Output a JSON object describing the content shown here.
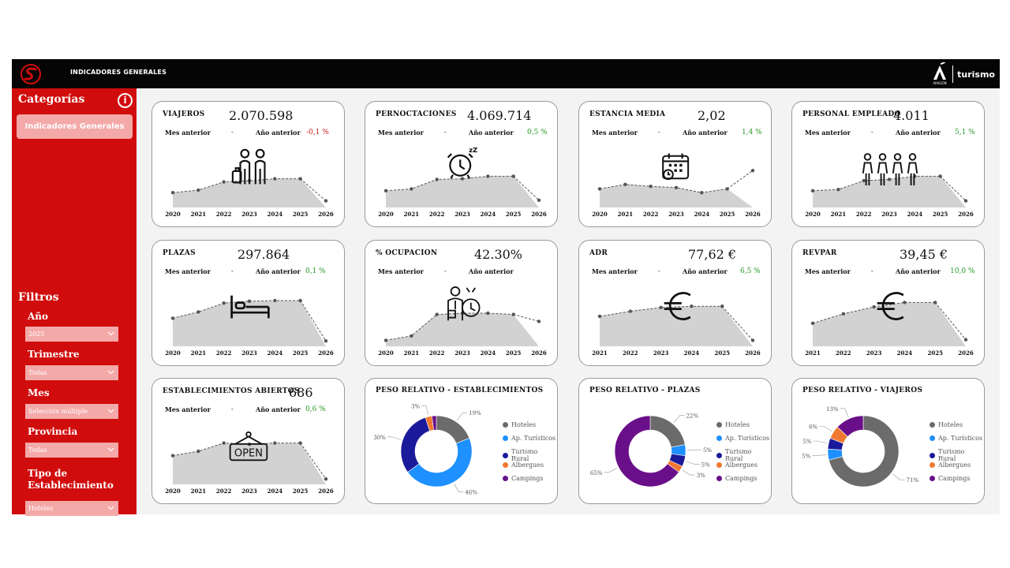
{
  "header": {
    "title": "INDICADORES GENERALES",
    "brand_word": "turismo",
    "brand_sub": "ARAGÓN"
  },
  "sidebar": {
    "categories_title": "Categorías",
    "info_icon": "i",
    "category_button": "Indicadores Generales",
    "filters_title": "Filtros",
    "filters": [
      {
        "label": "Año",
        "value": "2025"
      },
      {
        "label": "Trimestre",
        "value": "Todas"
      },
      {
        "label": "Mes",
        "value": "Selección múltiple"
      },
      {
        "label": "Provincia",
        "value": "Todas"
      },
      {
        "label": "Tipo de Establecimiento",
        "value": "Hoteles"
      }
    ]
  },
  "labels": {
    "prev_month": "Mes anterior",
    "prev_year": "Año anterior",
    "dash": "-"
  },
  "colors": {
    "positive": "#2a9a2a",
    "negative": "#cc1f1f",
    "area": "#d2d2d2",
    "brand_red": "#d10c0c"
  },
  "kpis": [
    {
      "title": "VIAJEROS",
      "value": "2.070.598",
      "year_change": "-0,1 %",
      "trend": "negative",
      "icon": "travelers-icon",
      "years": [
        "2020",
        "2021",
        "2022",
        "2023",
        "2024",
        "2025",
        "2026"
      ],
      "series": [
        0.21,
        0.25,
        0.38,
        0.4,
        0.43,
        0.43,
        0.08
      ]
    },
    {
      "title": "PERNOCTACIONES",
      "value": "4.069.714",
      "year_change": "0,5 %",
      "trend": "positive",
      "icon": "alarm-clock-icon",
      "years": [
        "2020",
        "2021",
        "2022",
        "2023",
        "2024",
        "2025",
        "2026"
      ],
      "series": [
        0.24,
        0.27,
        0.42,
        0.43,
        0.47,
        0.47,
        0.09
      ]
    },
    {
      "title": "ESTANCIA MEDIA",
      "value": "2,02",
      "year_change": "1,4 %",
      "trend": "positive",
      "icon": "calendar-icon",
      "years": [
        "2020",
        "2021",
        "2022",
        "2023",
        "2024",
        "2025",
        "2026"
      ],
      "series": [
        0.27,
        0.34,
        0.31,
        0.29,
        0.21,
        0.27,
        0.56
      ]
    },
    {
      "title": "PERSONAL EMPLEADO",
      "value": "4.011",
      "year_change": "5,1 %",
      "trend": "positive",
      "icon": "staff-icon",
      "years": [
        "2020",
        "2021",
        "2022",
        "2023",
        "2024",
        "2025",
        "2026"
      ],
      "series": [
        0.24,
        0.26,
        0.4,
        0.42,
        0.47,
        0.47,
        0.08
      ]
    },
    {
      "title": "PLAZAS",
      "value": "297.864",
      "year_change": "0,1 %",
      "trend": "positive",
      "icon": "bed-icon",
      "years": [
        "2020",
        "2021",
        "2022",
        "2023",
        "2024",
        "2025",
        "2026"
      ],
      "series": [
        0.42,
        0.52,
        0.66,
        0.69,
        0.7,
        0.7,
        0.06
      ]
    },
    {
      "title": "% OCUPACION",
      "value": "42.30%",
      "year_change": "",
      "trend": "positive",
      "icon": "businessman-clock-icon",
      "years": [
        "2020",
        "2021",
        "2022",
        "2023",
        "2024",
        "2025",
        "2026"
      ],
      "series": [
        0.07,
        0.14,
        0.48,
        0.5,
        0.5,
        0.48,
        0.37
      ]
    },
    {
      "title": "ADR",
      "value": "77,62 €",
      "year_change": "6,5 %",
      "trend": "positive",
      "icon": "euro-icon",
      "years": [
        "2021",
        "2022",
        "2023",
        "2024",
        "2025",
        "2026"
      ],
      "series": [
        0.45,
        0.53,
        0.59,
        0.61,
        0.61,
        0.07
      ]
    },
    {
      "title": "REVPAR",
      "value": "39,45 €",
      "year_change": "10,0 %",
      "trend": "positive",
      "icon": "euro-icon",
      "years": [
        "2021",
        "2022",
        "2023",
        "2024",
        "2025",
        "2026"
      ],
      "series": [
        0.34,
        0.49,
        0.6,
        0.67,
        0.67,
        0.08
      ]
    },
    {
      "title": "ESTABLECIMIENTOS ABIERTOS",
      "value": "686",
      "year_change": "0,6 %",
      "trend": "positive",
      "icon": "open-sign-icon",
      "years": [
        "2020",
        "2021",
        "2022",
        "2023",
        "2024",
        "2025",
        "2026"
      ],
      "series": [
        0.43,
        0.5,
        0.63,
        0.61,
        0.63,
        0.63,
        0.06
      ]
    }
  ],
  "donuts": [
    {
      "title": "PESO RELATIVO - ESTABLECIMIENTOS",
      "slices": [
        {
          "name": "Hoteles",
          "value": 19,
          "label": "19%"
        },
        {
          "name": "Ap. Turísticos",
          "value": 46,
          "label": "46%"
        },
        {
          "name": "Turismo Rural",
          "value": 30,
          "label": "30%"
        },
        {
          "name": "Albergues",
          "value": 3,
          "label": "3%"
        },
        {
          "name": "Campings",
          "value": 2,
          "label": ""
        }
      ]
    },
    {
      "title": "PESO RELATIVO - PLAZAS",
      "slices": [
        {
          "name": "Hoteles",
          "value": 22,
          "label": "22%"
        },
        {
          "name": "Ap. Turísticos",
          "value": 5,
          "label": "5%"
        },
        {
          "name": "Turismo Rural",
          "value": 5,
          "label": "5%"
        },
        {
          "name": "Albergues",
          "value": 3,
          "label": "3%"
        },
        {
          "name": "Campings",
          "value": 65,
          "label": "65%"
        }
      ]
    },
    {
      "title": "PESO RELATIVO - VIAJEROS",
      "slices": [
        {
          "name": "Hoteles",
          "value": 71,
          "label": "71%"
        },
        {
          "name": "Ap. Turísticos",
          "value": 5,
          "label": "5%"
        },
        {
          "name": "Turismo Rural",
          "value": 5,
          "label": "5%"
        },
        {
          "name": "Albergues",
          "value": 6,
          "label": "6%"
        },
        {
          "name": "Campings",
          "value": 13,
          "label": "13%"
        }
      ]
    }
  ],
  "legend_colors": {
    "Hoteles": "#6b6b6b",
    "Ap. Turísticos": "#1e90ff",
    "Turismo Rural": "#1a1a9a",
    "Albergues": "#f07830",
    "Campings": "#6a0f8a"
  }
}
